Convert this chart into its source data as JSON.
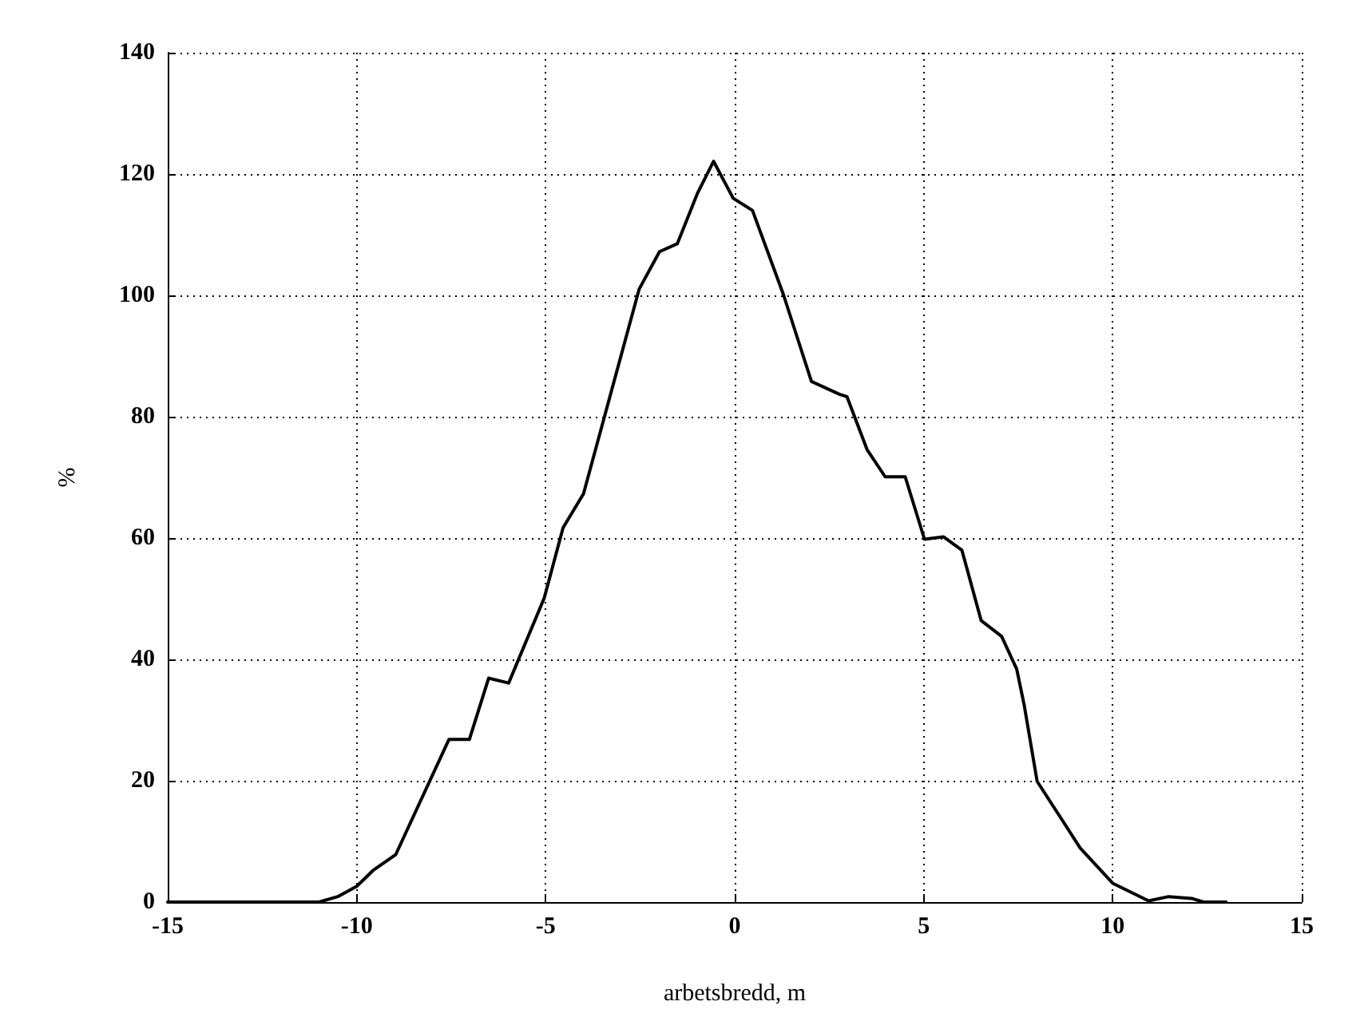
{
  "chart_data": {
    "type": "line",
    "xlabel": "arbetsbredd, m",
    "ylabel": "%",
    "x": [
      -15,
      -11,
      -10.5,
      -10,
      -9.57,
      -8.97,
      -7.56,
      -7.02,
      -6.51,
      -5.98,
      -5.04,
      -4.54,
      -4.0,
      -2.53,
      -1.99,
      -1.52,
      -0.98,
      -0.56,
      -0.04,
      0.47,
      1.29,
      2.03,
      2.77,
      2.97,
      3.5,
      3.98,
      4.51,
      5.02,
      5.52,
      6.01,
      6.52,
      7.06,
      7.46,
      7.66,
      8.0,
      8.54,
      9.14,
      10,
      10.95,
      11.48,
      12.09,
      12.4,
      13
    ],
    "series": [
      {
        "color": "#000000",
        "values": [
          0,
          0,
          0.9,
          2.6,
          5.2,
          7.8,
          26.8,
          26.8,
          36.9,
          36.1,
          50.1,
          61.7,
          67.3,
          101,
          107.2,
          108.5,
          116.9,
          122.1,
          116,
          114,
          100.1,
          85.8,
          83.7,
          83.3,
          74.6,
          70.1,
          70.1,
          59.8,
          60.2,
          58,
          46.4,
          43.8,
          38.4,
          32.4,
          19.9,
          14.7,
          8.9,
          3.1,
          0.2,
          0.9,
          0.6,
          0,
          0
        ]
      }
    ],
    "xlim": [
      -15,
      15
    ],
    "xticks": [
      -15,
      -10,
      -5,
      0,
      5,
      10,
      15
    ],
    "ylim": [
      0,
      140
    ],
    "yticks": [
      0,
      20,
      40,
      60,
      80,
      100,
      120,
      140
    ],
    "grid": true,
    "marker": "none",
    "line_style": "solid"
  }
}
